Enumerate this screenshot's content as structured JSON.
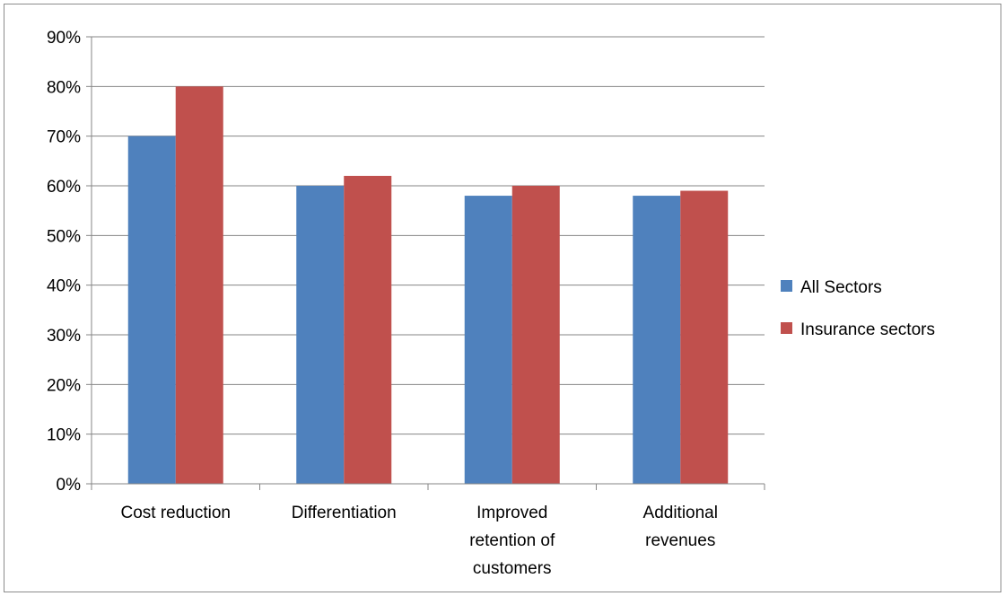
{
  "chart_data": {
    "type": "bar",
    "categories": [
      [
        "Cost reduction"
      ],
      [
        "Differentiation"
      ],
      [
        "Improved",
        "retention of",
        "customers"
      ],
      [
        "Additional",
        "revenues"
      ]
    ],
    "series": [
      {
        "name": "All Sectors",
        "values": [
          70,
          60,
          58,
          58
        ],
        "color": "#4f81bd"
      },
      {
        "name": "Insurance sectors",
        "values": [
          80,
          62,
          60,
          59
        ],
        "color": "#c0504d"
      }
    ],
    "ylim": [
      0,
      90
    ],
    "yticks": [
      0,
      10,
      20,
      30,
      40,
      50,
      60,
      70,
      80,
      90
    ],
    "ytick_suffix": "%",
    "grid": true,
    "legend_position": "right"
  }
}
